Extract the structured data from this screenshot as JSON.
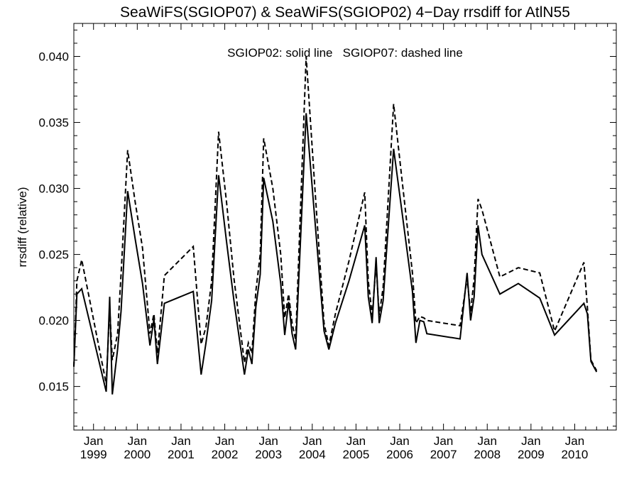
{
  "chart_data": {
    "type": "line",
    "title": "SeaWiFS(SGIOP07) & SeaWiFS(SGIOP02) 4−Day rrsdiff for AtlN55",
    "annotation": "SGIOP02: solid line   SGIOP07: dashed line",
    "ylabel": "rrsdiff (relative)",
    "xlabel": "",
    "xlim": [
      1998.55,
      2010.95
    ],
    "ylim": [
      0.0117,
      0.0425
    ],
    "y_ticks": [
      0.015,
      0.02,
      0.025,
      0.03,
      0.035,
      0.04
    ],
    "y_tick_labels": [
      "0.015",
      "0.020",
      "0.025",
      "0.030",
      "0.035",
      "0.040"
    ],
    "x_ticks": [
      1999,
      2000,
      2001,
      2002,
      2003,
      2004,
      2005,
      2006,
      2007,
      2008,
      2009,
      2010
    ],
    "x_tick_labels": [
      {
        "month": "Jan",
        "year": "1999"
      },
      {
        "month": "Jan",
        "year": "2000"
      },
      {
        "month": "Jan",
        "year": "2001"
      },
      {
        "month": "Jan",
        "year": "2002"
      },
      {
        "month": "Jan",
        "year": "2003"
      },
      {
        "month": "Jan",
        "year": "2004"
      },
      {
        "month": "Jan",
        "year": "2005"
      },
      {
        "month": "Jan",
        "year": "2006"
      },
      {
        "month": "Jan",
        "year": "2007"
      },
      {
        "month": "Jan",
        "year": "2008"
      },
      {
        "month": "Jan",
        "year": "2009"
      },
      {
        "month": "Jan",
        "year": "2010"
      }
    ],
    "grid": false,
    "series": [
      {
        "name": "SGIOP02",
        "style": "solid",
        "color": "#000000",
        "points": [
          [
            1998.55,
            0.0165
          ],
          [
            1998.62,
            0.022
          ],
          [
            1998.73,
            0.0224
          ],
          [
            1999.29,
            0.0146
          ],
          [
            1999.37,
            0.0218
          ],
          [
            1999.43,
            0.0144
          ],
          [
            1999.55,
            0.0178
          ],
          [
            1999.63,
            0.0207
          ],
          [
            1999.78,
            0.0298
          ],
          [
            1999.95,
            0.0262
          ],
          [
            2000.12,
            0.0228
          ],
          [
            2000.29,
            0.0181
          ],
          [
            2000.38,
            0.0201
          ],
          [
            2000.46,
            0.0167
          ],
          [
            2000.62,
            0.0213
          ],
          [
            2001.28,
            0.0222
          ],
          [
            2001.46,
            0.0159
          ],
          [
            2001.57,
            0.0183
          ],
          [
            2001.7,
            0.0215
          ],
          [
            2001.86,
            0.031
          ],
          [
            2002.04,
            0.026
          ],
          [
            2002.21,
            0.0215
          ],
          [
            2002.45,
            0.0159
          ],
          [
            2002.54,
            0.0178
          ],
          [
            2002.62,
            0.0167
          ],
          [
            2002.71,
            0.021
          ],
          [
            2002.81,
            0.0235
          ],
          [
            2002.89,
            0.0308
          ],
          [
            2003.1,
            0.0275
          ],
          [
            2003.28,
            0.0228
          ],
          [
            2003.37,
            0.0189
          ],
          [
            2003.46,
            0.0214
          ],
          [
            2003.54,
            0.019
          ],
          [
            2003.62,
            0.0178
          ],
          [
            2003.86,
            0.0357
          ],
          [
            2004.05,
            0.028
          ],
          [
            2004.27,
            0.0192
          ],
          [
            2004.38,
            0.0178
          ],
          [
            2004.53,
            0.0198
          ],
          [
            2004.84,
            0.023
          ],
          [
            2005.2,
            0.0272
          ],
          [
            2005.28,
            0.0218
          ],
          [
            2005.37,
            0.0198
          ],
          [
            2005.46,
            0.0248
          ],
          [
            2005.53,
            0.0198
          ],
          [
            2005.62,
            0.0215
          ],
          [
            2005.86,
            0.033
          ],
          [
            2006.04,
            0.0285
          ],
          [
            2006.29,
            0.0222
          ],
          [
            2006.37,
            0.0183
          ],
          [
            2006.46,
            0.02
          ],
          [
            2006.55,
            0.0199
          ],
          [
            2006.62,
            0.019
          ],
          [
            2007.38,
            0.0186
          ],
          [
            2007.54,
            0.0236
          ],
          [
            2007.62,
            0.02
          ],
          [
            2007.7,
            0.0218
          ],
          [
            2007.79,
            0.0272
          ],
          [
            2007.88,
            0.025
          ],
          [
            2008.29,
            0.022
          ],
          [
            2008.71,
            0.0228
          ],
          [
            2009.2,
            0.0217
          ],
          [
            2009.54,
            0.0189
          ],
          [
            2010.21,
            0.0213
          ],
          [
            2010.29,
            0.0205
          ],
          [
            2010.37,
            0.0169
          ],
          [
            2010.5,
            0.0161
          ]
        ]
      },
      {
        "name": "SGIOP07",
        "style": "dashed",
        "color": "#000000",
        "points": [
          [
            1998.55,
            0.0165
          ],
          [
            1998.62,
            0.023
          ],
          [
            1998.73,
            0.0246
          ],
          [
            1999.29,
            0.0152
          ],
          [
            1999.37,
            0.021
          ],
          [
            1999.43,
            0.017
          ],
          [
            1999.55,
            0.019
          ],
          [
            1999.63,
            0.0235
          ],
          [
            1999.78,
            0.0329
          ],
          [
            1999.95,
            0.029
          ],
          [
            2000.12,
            0.0255
          ],
          [
            2000.29,
            0.019
          ],
          [
            2000.38,
            0.0205
          ],
          [
            2000.46,
            0.0175
          ],
          [
            2000.62,
            0.0234
          ],
          [
            2001.28,
            0.0256
          ],
          [
            2001.46,
            0.0182
          ],
          [
            2001.57,
            0.0195
          ],
          [
            2001.7,
            0.023
          ],
          [
            2001.86,
            0.0343
          ],
          [
            2002.04,
            0.029
          ],
          [
            2002.21,
            0.0232
          ],
          [
            2002.45,
            0.0168
          ],
          [
            2002.54,
            0.0183
          ],
          [
            2002.62,
            0.0175
          ],
          [
            2002.71,
            0.0222
          ],
          [
            2002.81,
            0.025
          ],
          [
            2002.89,
            0.0338
          ],
          [
            2003.1,
            0.03
          ],
          [
            2003.28,
            0.025
          ],
          [
            2003.37,
            0.0202
          ],
          [
            2003.46,
            0.022
          ],
          [
            2003.54,
            0.0198
          ],
          [
            2003.62,
            0.0185
          ],
          [
            2003.86,
            0.04
          ],
          [
            2004.05,
            0.0305
          ],
          [
            2004.27,
            0.0198
          ],
          [
            2004.38,
            0.0181
          ],
          [
            2004.53,
            0.0205
          ],
          [
            2004.84,
            0.0245
          ],
          [
            2005.2,
            0.0297
          ],
          [
            2005.28,
            0.023
          ],
          [
            2005.37,
            0.0204
          ],
          [
            2005.46,
            0.0243
          ],
          [
            2005.53,
            0.0204
          ],
          [
            2005.62,
            0.0225
          ],
          [
            2005.86,
            0.0364
          ],
          [
            2006.04,
            0.031
          ],
          [
            2006.29,
            0.0236
          ],
          [
            2006.37,
            0.0198
          ],
          [
            2006.46,
            0.0203
          ],
          [
            2006.55,
            0.0202
          ],
          [
            2006.62,
            0.02
          ],
          [
            2007.38,
            0.0196
          ],
          [
            2007.54,
            0.0232
          ],
          [
            2007.62,
            0.0206
          ],
          [
            2007.7,
            0.0232
          ],
          [
            2007.79,
            0.0292
          ],
          [
            2007.88,
            0.0284
          ],
          [
            2008.29,
            0.0233
          ],
          [
            2008.71,
            0.024
          ],
          [
            2009.2,
            0.0236
          ],
          [
            2009.54,
            0.0192
          ],
          [
            2010.21,
            0.0244
          ],
          [
            2010.29,
            0.021
          ],
          [
            2010.37,
            0.017
          ],
          [
            2010.5,
            0.0162
          ]
        ]
      }
    ]
  }
}
